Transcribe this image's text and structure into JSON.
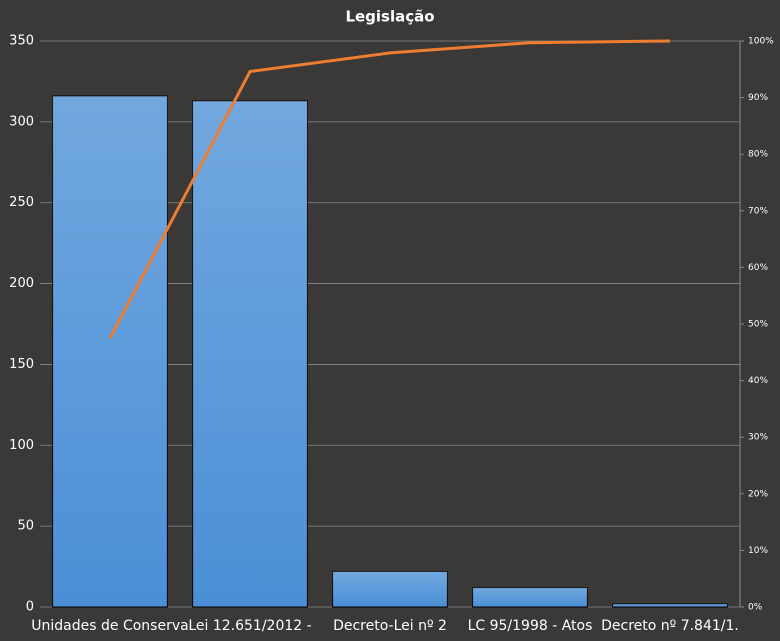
{
  "chart_data": {
    "type": "pareto",
    "title": "Legislação",
    "categories": [
      "Unidades de Conserva",
      "Lei 12.651/2012 -",
      "Decreto-Lei nº 2",
      "LC 95/1998 - Atos",
      "Decreto nº 7.841/1."
    ],
    "series": [
      {
        "type": "bar",
        "color": "#4a8fd6",
        "values": [
          316,
          313,
          22,
          12,
          2
        ]
      },
      {
        "type": "line",
        "axis": "y2",
        "color": "#ed7d31",
        "values": [
          47.5,
          94.6,
          97.9,
          99.7,
          100
        ]
      }
    ],
    "ylim": [
      0,
      350
    ],
    "yticks": [
      0,
      50,
      100,
      150,
      200,
      250,
      300,
      350
    ],
    "y2lim": [
      0,
      100
    ],
    "y2ticks": [
      {
        "value": 0,
        "label": "0%"
      },
      {
        "value": 10,
        "label": "10%"
      },
      {
        "value": 20,
        "label": "20%"
      },
      {
        "value": 30,
        "label": "30%"
      },
      {
        "value": 40,
        "label": "40%"
      },
      {
        "value": 50,
        "label": "50%"
      },
      {
        "value": 60,
        "label": "60%"
      },
      {
        "value": 70,
        "label": "70%"
      },
      {
        "value": 80,
        "label": "80%"
      },
      {
        "value": 90,
        "label": "90%"
      },
      {
        "value": 100,
        "label": "100%"
      }
    ],
    "grid": true
  }
}
